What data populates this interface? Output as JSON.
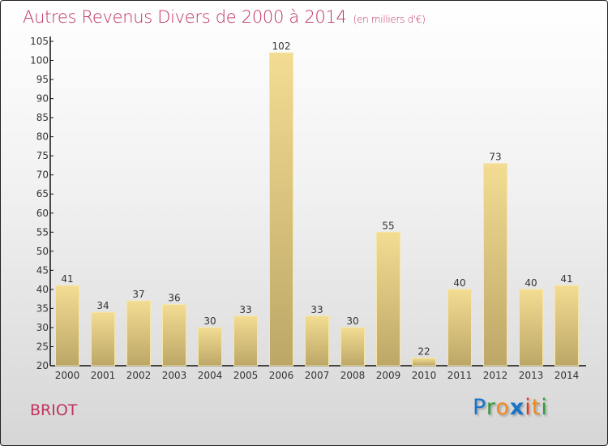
{
  "chart_data": {
    "type": "bar",
    "title": "Autres Revenus Divers de 2000 à 2014",
    "subtitle": "(en milliers d'€)",
    "xlabel": "",
    "ylabel": "",
    "categories": [
      "2000",
      "2001",
      "2002",
      "2003",
      "2004",
      "2005",
      "2006",
      "2007",
      "2008",
      "2009",
      "2010",
      "2011",
      "2012",
      "2013",
      "2014"
    ],
    "values": [
      41,
      34,
      37,
      36,
      30,
      33,
      102,
      33,
      30,
      55,
      22,
      40,
      73,
      40,
      41
    ],
    "ylim": [
      20,
      105
    ],
    "yticks": [
      20,
      25,
      30,
      35,
      40,
      45,
      50,
      55,
      60,
      65,
      70,
      75,
      80,
      85,
      90,
      95,
      100,
      105
    ],
    "grid": false,
    "colors": {
      "bar_top": "#f3dc92",
      "bar_bottom": "#bca767",
      "title": "#c0335e"
    }
  },
  "footer": {
    "town": "BRIOT",
    "logo": "Proxiti"
  }
}
